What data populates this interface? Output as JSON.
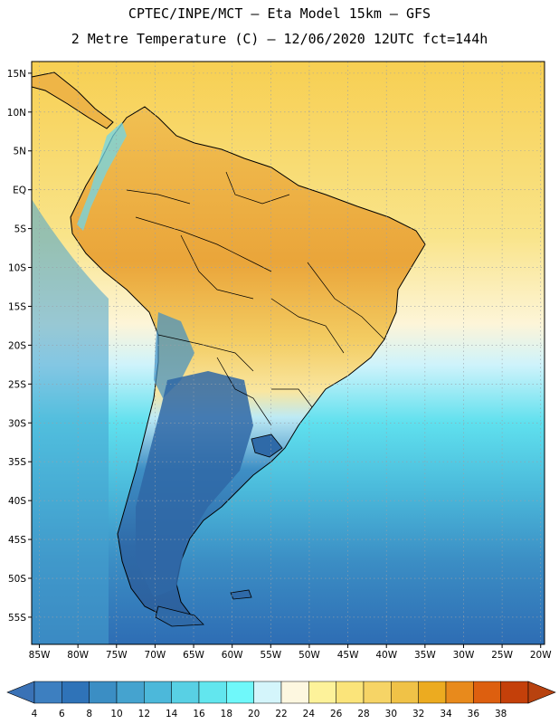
{
  "header": {
    "line1": "CPTEC/INPE/MCT –  Eta Model 15km – GFS",
    "line2": "2 Metre Temperature (C) – 12/06/2020 12UTC fct=144h"
  },
  "map": {
    "lat_ticks": [
      "15N",
      "10N",
      "5N",
      "EQ",
      "5S",
      "10S",
      "15S",
      "20S",
      "25S",
      "30S",
      "35S",
      "40S",
      "45S",
      "50S",
      "55S"
    ],
    "lon_ticks": [
      "85W",
      "80W",
      "75W",
      "70W",
      "65W",
      "60W",
      "55W",
      "50W",
      "45W",
      "40W",
      "35W",
      "30W",
      "25W",
      "20W"
    ],
    "lat_range": [
      16.5,
      -58.5
    ],
    "lon_range": [
      -86,
      -19.5
    ]
  },
  "colorbar": {
    "labels": [
      "4",
      "6",
      "8",
      "10",
      "12",
      "14",
      "16",
      "18",
      "20",
      "22",
      "24",
      "26",
      "28",
      "30",
      "32",
      "34",
      "36",
      "38"
    ],
    "colors": [
      "#3d7fc0",
      "#2f73b8",
      "#3b8ec4",
      "#45a3cf",
      "#4cb8da",
      "#58d0e4",
      "#62e6ee",
      "#6ff8fa",
      "#d4f5fb",
      "#fdf7e0",
      "#fdf29a",
      "#fbe47a",
      "#f6d466",
      "#f0c247",
      "#ecab20",
      "#e88a1c",
      "#dd5f0f",
      "#c4400a"
    ],
    "under_color": "#3a72b6",
    "over_color": "#b8420f"
  },
  "colors": {
    "ocean_north": "#f8d867",
    "ocean_south": "#2f6fb6",
    "land_warm": "#eeb040",
    "land_cold": "#2f6aa8",
    "grid": "#9aa0a8"
  }
}
